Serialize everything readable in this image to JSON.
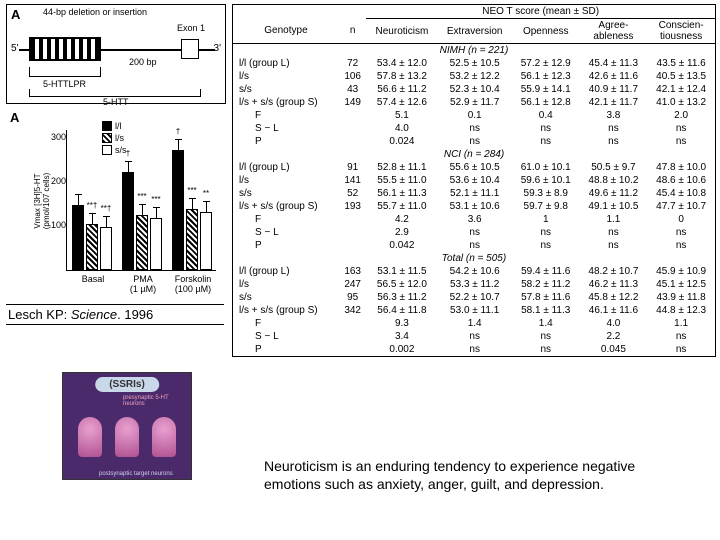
{
  "gene": {
    "panel_letter": "A",
    "deletion_label": "44-bp deletion or insertion",
    "exon_label": "Exon 1",
    "five_prime": "5'",
    "three_prime": "3'",
    "httlpr": "5-HTTLPR",
    "httlabel": "5-HTT",
    "distance": "200 bp"
  },
  "barchart": {
    "panel_letter": "A",
    "ylabel": "Vmax [3H]5-HT\n(pmol/107 cells)",
    "yticks": [
      "100",
      "200",
      "300"
    ],
    "legend": {
      "ll": "l/l",
      "ls": "l/s",
      "ss": "s/s"
    },
    "groups": [
      {
        "name": "Basal",
        "sub": "",
        "bars": {
          "ll": 140,
          "ls": 98,
          "ss": 92
        },
        "sig": {
          "ls": "**†",
          "ss": "**†"
        }
      },
      {
        "name": "PMA",
        "sub": "(1 µM)",
        "bars": {
          "ll": 210,
          "ls": 118,
          "ss": 112
        },
        "sig": {
          "ll": "†",
          "ls": "***",
          "ss": "***"
        }
      },
      {
        "name": "Forskolin",
        "sub": "(100 µM)",
        "bars": {
          "ll": 258,
          "ls": 130,
          "ss": 124
        },
        "sig": {
          "ll": "†",
          "ls": "***",
          "ss": "**"
        }
      }
    ],
    "bar_colors": {
      "ll": "#000000",
      "ls": "hatch",
      "ss": "#ffffff"
    },
    "ylim": [
      0,
      300
    ]
  },
  "citation": {
    "author": "Lesch KP: ",
    "journal": "Science",
    "year": ". 1996"
  },
  "ssri": {
    "title": "(SSRIs)",
    "pre": "presynaptic 5-HT neurons",
    "post": "postsynaptic target neurons"
  },
  "table": {
    "neo_header": "NEO T score (mean ± SD)",
    "genotype_header": "Genotype",
    "n_header": "n",
    "columns": [
      "Neuroticism",
      "Extraversion",
      "Openness",
      "Agree-\nableness",
      "Conscien-\ntiousness"
    ],
    "sections": [
      {
        "title": "NIMH (n = 221)",
        "rows": [
          {
            "label": "l/l (group L)",
            "n": "72",
            "vals": [
              "53.4 ± 12.0",
              "52.5 ± 10.5",
              "57.2 ± 12.9",
              "45.4 ± 11.3",
              "43.5 ± 11.6"
            ]
          },
          {
            "label": "l/s",
            "n": "106",
            "vals": [
              "57.8 ± 13.2",
              "53.2 ± 12.2",
              "56.1 ± 12.3",
              "42.6 ± 11.6",
              "40.5 ± 13.5"
            ]
          },
          {
            "label": "s/s",
            "n": "43",
            "vals": [
              "56.6 ± 11.2",
              "52.3 ± 10.4",
              "55.9 ± 14.1",
              "40.9 ± 11.7",
              "42.1 ± 12.4"
            ]
          },
          {
            "label": "l/s + s/s (group S)",
            "n": "149",
            "vals": [
              "57.4 ± 12.6",
              "52.9 ± 11.7",
              "56.1 ± 12.8",
              "42.1 ± 11.7",
              "41.0 ± 13.2"
            ]
          }
        ],
        "stats": [
          {
            "label": "F",
            "vals": [
              "5.1",
              "0.1",
              "0.4",
              "3.8",
              "2.0"
            ]
          },
          {
            "label": "S − L",
            "vals": [
              "4.0",
              "ns",
              "ns",
              "ns",
              "ns"
            ]
          },
          {
            "label": "P",
            "vals": [
              "0.024",
              "ns",
              "ns",
              "ns",
              "ns"
            ]
          }
        ]
      },
      {
        "title": "NCI (n = 284)",
        "rows": [
          {
            "label": "l/l (group L)",
            "n": "91",
            "vals": [
              "52.8 ± 11.1",
              "55.6 ± 10.5",
              "61.0 ± 10.1",
              "50.5 ± 9.7",
              "47.8 ± 10.0"
            ]
          },
          {
            "label": "l/s",
            "n": "141",
            "vals": [
              "55.5 ± 11.0",
              "53.6 ± 10.4",
              "59.6 ± 10.1",
              "48.8 ± 10.2",
              "48.6 ± 10.6"
            ]
          },
          {
            "label": "s/s",
            "n": "52",
            "vals": [
              "56.1 ± 11.3",
              "52.1 ± 11.1",
              "59.3 ± 8.9",
              "49.6 ± 11.2",
              "45.4 ± 10.8"
            ]
          },
          {
            "label": "l/s + s/s (group S)",
            "n": "193",
            "vals": [
              "55.7 ± 11.0",
              "53.1 ± 10.6",
              "59.7 ± 9.8",
              "49.1 ± 10.5",
              "47.7 ± 10.7"
            ]
          }
        ],
        "stats": [
          {
            "label": "F",
            "vals": [
              "4.2",
              "3.6",
              "1",
              "1.1",
              "0"
            ]
          },
          {
            "label": "S − L",
            "vals": [
              "2.9",
              "ns",
              "ns",
              "ns",
              "ns"
            ]
          },
          {
            "label": "P",
            "vals": [
              "0.042",
              "ns",
              "ns",
              "ns",
              "ns"
            ]
          }
        ]
      },
      {
        "title": "Total (n = 505)",
        "rows": [
          {
            "label": "l/l (group L)",
            "n": "163",
            "vals": [
              "53.1 ± 11.5",
              "54.2 ± 10.6",
              "59.4 ± 11.6",
              "48.2 ± 10.7",
              "45.9 ± 10.9"
            ]
          },
          {
            "label": "l/s",
            "n": "247",
            "vals": [
              "56.5 ± 12.0",
              "53.3 ± 11.2",
              "58.2 ± 11.2",
              "46.2 ± 11.3",
              "45.1 ± 12.5"
            ]
          },
          {
            "label": "s/s",
            "n": "95",
            "vals": [
              "56.3 ± 11.2",
              "52.2 ± 10.7",
              "57.8 ± 11.6",
              "45.8 ± 12.2",
              "43.9 ± 11.8"
            ]
          },
          {
            "label": "l/s + s/s (group S)",
            "n": "342",
            "vals": [
              "56.4 ± 11.8",
              "53.0 ± 11.1",
              "58.1 ± 11.3",
              "46.1 ± 11.6",
              "44.8 ± 12.3"
            ]
          }
        ],
        "stats": [
          {
            "label": "F",
            "vals": [
              "9.3",
              "1.4",
              "1.4",
              "4.0",
              "1.1"
            ]
          },
          {
            "label": "S − L",
            "vals": [
              "3.4",
              "ns",
              "ns",
              "2.2",
              "ns"
            ]
          },
          {
            "label": "P",
            "vals": [
              "0.002",
              "ns",
              "ns",
              "0.045",
              "ns"
            ]
          }
        ]
      }
    ]
  },
  "caption": "Neuroticism is an enduring tendency to experience negative emotions such as anxiety, anger, guilt, and depression."
}
